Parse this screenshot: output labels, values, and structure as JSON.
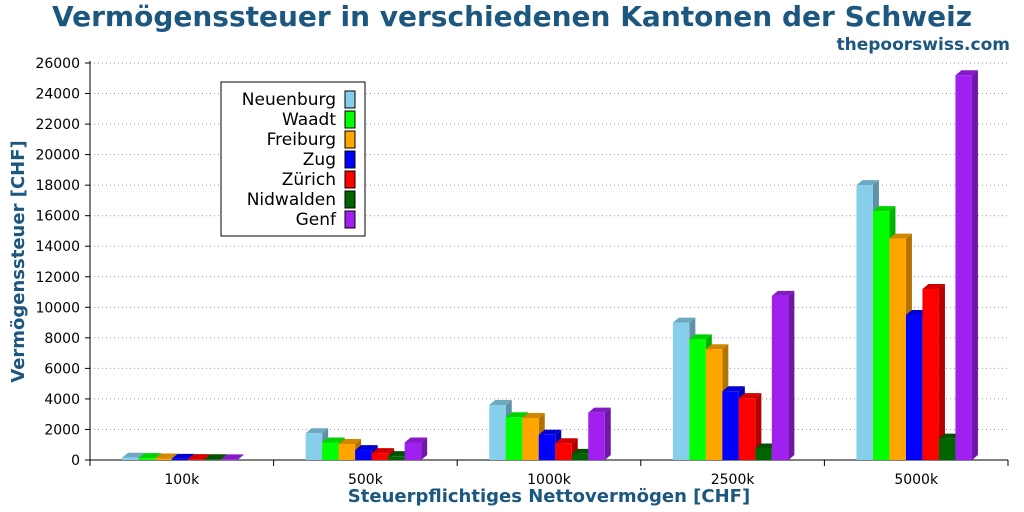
{
  "header": {
    "title": "Vermögenssteuer in verschiedenen Kantonen der Schweiz",
    "site": "thepoorswiss.com"
  },
  "chart_data": {
    "type": "bar",
    "title": "Vermögenssteuer in verschiedenen Kantonen der Schweiz",
    "xlabel": "Steuerpflichtiges Nettovermögen [CHF]",
    "ylabel": "Vermögenssteuer [CHF]",
    "ylim": [
      0,
      26000
    ],
    "yticks": [
      0,
      2000,
      4000,
      6000,
      8000,
      10000,
      12000,
      14000,
      16000,
      18000,
      20000,
      22000,
      24000,
      26000
    ],
    "grid": true,
    "legend_position": "top-left",
    "categories": [
      "100k",
      "500k",
      "1000k",
      "2500k",
      "5000k"
    ],
    "series": [
      {
        "name": "Neuenburg",
        "color": "#87ceeb",
        "values": [
          150,
          1750,
          3600,
          9000,
          18000
        ]
      },
      {
        "name": "Waadt",
        "color": "#00ff00",
        "values": [
          120,
          1150,
          2800,
          7900,
          16300
        ]
      },
      {
        "name": "Freiburg",
        "color": "#ffa500",
        "values": [
          100,
          1050,
          2750,
          7250,
          14500
        ]
      },
      {
        "name": "Zug",
        "color": "#0000ff",
        "values": [
          70,
          650,
          1650,
          4500,
          9500
        ]
      },
      {
        "name": "Zürich",
        "color": "#ff0000",
        "values": [
          60,
          450,
          1100,
          4050,
          11200
        ]
      },
      {
        "name": "Nidwalden",
        "color": "#006400",
        "values": [
          50,
          250,
          400,
          750,
          1400
        ]
      },
      {
        "name": "Genf",
        "color": "#a020f0",
        "values": [
          40,
          1150,
          3100,
          10750,
          25200
        ]
      }
    ]
  }
}
